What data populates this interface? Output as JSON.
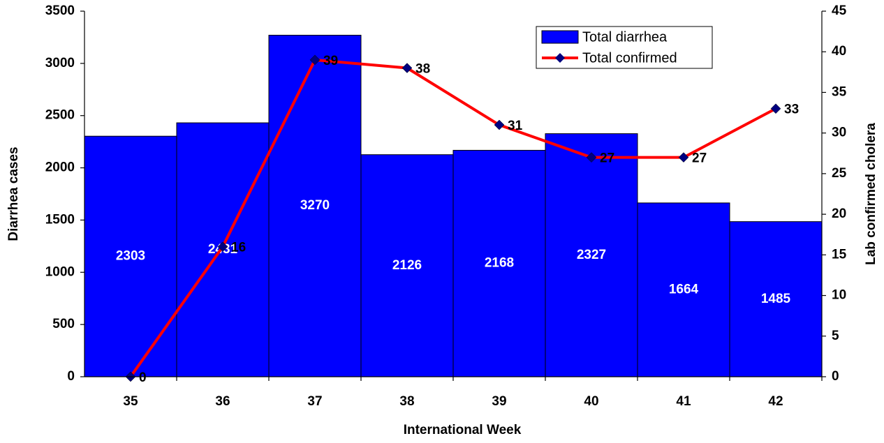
{
  "chart_data": {
    "type": "combo",
    "x_label": "International Week",
    "y_label": "Diarrhea cases",
    "y2_label": "Lab confirmed cholera",
    "categories": [
      "35",
      "36",
      "37",
      "38",
      "39",
      "40",
      "41",
      "42"
    ],
    "series": [
      {
        "name": "Total diarrhea",
        "type": "bar",
        "color": "#0000ff",
        "values": [
          2303,
          2431,
          3270,
          2126,
          2168,
          2327,
          1664,
          1485
        ]
      },
      {
        "name": "Total confirmed",
        "type": "line",
        "axis": "y2",
        "color": "#ff0000",
        "marker_color": "#000080",
        "values": [
          0,
          16,
          39,
          38,
          31,
          27,
          27,
          33
        ]
      }
    ],
    "ylim": [
      0,
      3500
    ],
    "yticks": [
      0,
      500,
      1000,
      1500,
      2000,
      2500,
      3000,
      3500
    ],
    "y2lim": [
      0,
      45
    ],
    "y2ticks": [
      0,
      5,
      10,
      15,
      20,
      25,
      30,
      35,
      40,
      45
    ],
    "grid": false,
    "legend": "top-right"
  }
}
